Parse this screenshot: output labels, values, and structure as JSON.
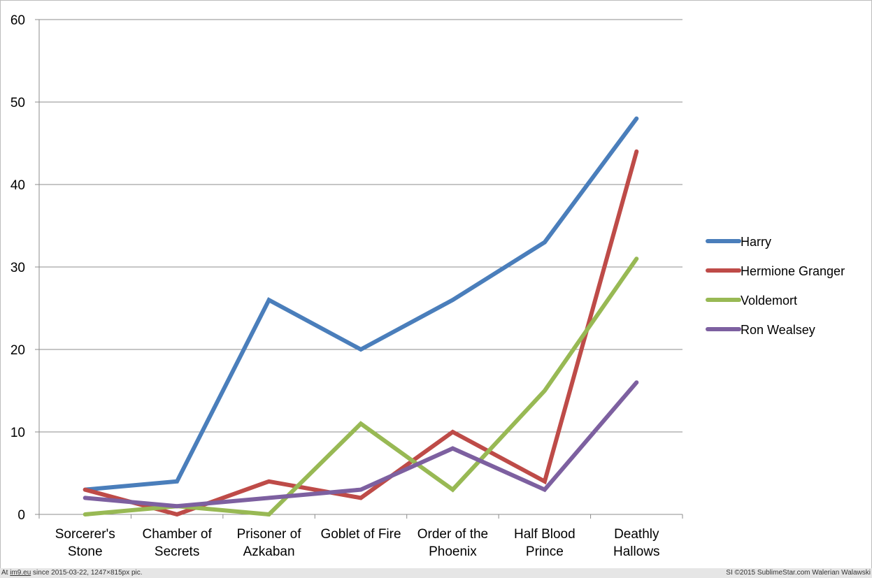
{
  "chart_data": {
    "type": "line",
    "categories": [
      [
        "Sorcerer's",
        "Stone"
      ],
      [
        "Chamber of",
        "Secrets"
      ],
      [
        "Prisoner of",
        "Azkaban"
      ],
      [
        "Goblet of Fire"
      ],
      [
        "Order of the",
        "Phoenix"
      ],
      [
        "Half Blood",
        "Prince"
      ],
      [
        "Deathly",
        "Hallows"
      ]
    ],
    "ylim": [
      0,
      60
    ],
    "yticks": [
      0,
      10,
      20,
      30,
      40,
      50,
      60
    ],
    "grid": true,
    "legend_position": "right",
    "series": [
      {
        "name": "Harry",
        "color": "#4a7ebb",
        "values": [
          3,
          4,
          26,
          20,
          26,
          33,
          48
        ]
      },
      {
        "name": "Hermione Granger",
        "color": "#be4b48",
        "values": [
          3,
          0,
          4,
          2,
          10,
          4,
          44
        ]
      },
      {
        "name": "Voldemort",
        "color": "#98b954",
        "values": [
          0,
          1,
          0,
          11,
          3,
          15,
          31
        ]
      },
      {
        "name": "Ron Wealsey",
        "color": "#7d60a0",
        "values": [
          2,
          1,
          2,
          3,
          8,
          3,
          16
        ]
      }
    ]
  },
  "footer": {
    "left_prefix": "At",
    "left_link": "im9.eu",
    "left_suffix": "since 2015-03-22, 1247×815px pic.",
    "right": "SI ©2015 SublimeStar.com Walerian Walawski"
  }
}
